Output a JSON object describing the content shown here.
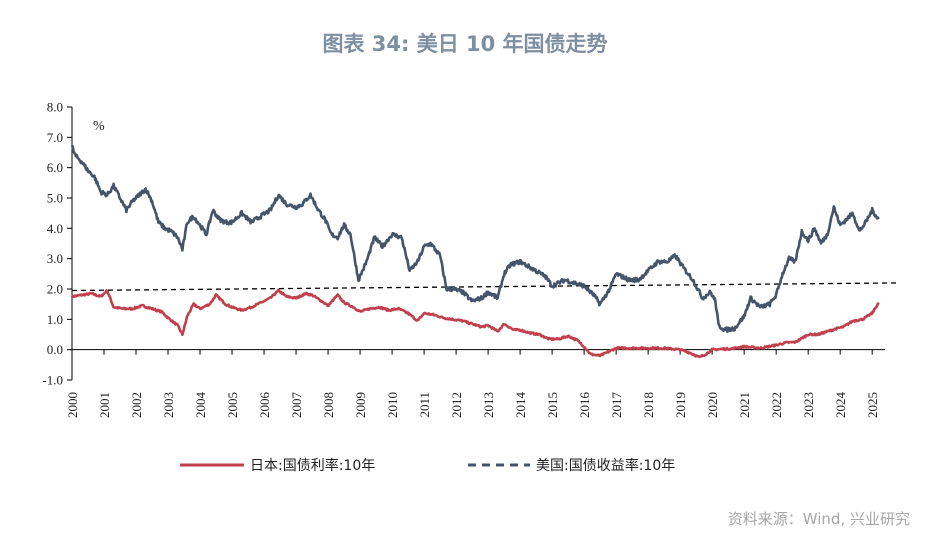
{
  "title": "图表 34: 美日 10 年国债走势",
  "source": "资料来源：Wind, 兴业研究",
  "chart_data": {
    "type": "line",
    "unit_label": "%",
    "ylim": [
      -1.0,
      8.0
    ],
    "yticks": [
      "8.0",
      "7.0",
      "6.0",
      "5.0",
      "4.0",
      "3.0",
      "2.0",
      "1.0",
      "0.0",
      "-1.0"
    ],
    "ytick_values": [
      8,
      7,
      6,
      5,
      4,
      3,
      2,
      1,
      0,
      -1
    ],
    "xlim": [
      2000,
      2025.4
    ],
    "xticks": [
      "2000",
      "2001",
      "2002",
      "2003",
      "2004",
      "2005",
      "2006",
      "2007",
      "2008",
      "2009",
      "2010",
      "2011",
      "2012",
      "2013",
      "2014",
      "2015",
      "2016",
      "2017",
      "2018",
      "2019",
      "2020",
      "2021",
      "2022",
      "2023",
      "2024",
      "2025"
    ],
    "xtick_values": [
      2000,
      2001,
      2002,
      2003,
      2004,
      2005,
      2006,
      2007,
      2008,
      2009,
      2010,
      2011,
      2012,
      2013,
      2014,
      2015,
      2016,
      2017,
      2018,
      2019,
      2020,
      2021,
      2022,
      2023,
      2024,
      2025
    ],
    "reference_line": {
      "style": "dashed",
      "from": [
        2000,
        1.95
      ],
      "to": [
        2025.8,
        2.2
      ]
    },
    "series": [
      {
        "name": "日本:国债利率:10年",
        "color": "#c0404d",
        "style": "solid",
        "x": [
          2000.0,
          2000.3,
          2000.6,
          2000.9,
          2001.1,
          2001.3,
          2001.6,
          2001.9,
          2002.2,
          2002.5,
          2002.8,
          2003.0,
          2003.3,
          2003.45,
          2003.6,
          2003.8,
          2004.0,
          2004.3,
          2004.5,
          2004.8,
          2005.0,
          2005.3,
          2005.6,
          2005.9,
          2006.2,
          2006.45,
          2006.7,
          2007.0,
          2007.3,
          2007.5,
          2007.8,
          2008.0,
          2008.3,
          2008.5,
          2008.8,
          2009.0,
          2009.3,
          2009.6,
          2009.9,
          2010.2,
          2010.5,
          2010.8,
          2011.0,
          2011.3,
          2011.6,
          2011.9,
          2012.2,
          2012.5,
          2012.8,
          2013.0,
          2013.3,
          2013.5,
          2013.8,
          2014.0,
          2014.3,
          2014.6,
          2014.9,
          2015.2,
          2015.5,
          2015.8,
          2016.0,
          2016.2,
          2016.5,
          2016.8,
          2017.0,
          2017.5,
          2018.0,
          2018.5,
          2019.0,
          2019.3,
          2019.6,
          2019.8,
          2020.0,
          2020.3,
          2020.6,
          2021.0,
          2021.5,
          2022.0,
          2022.3,
          2022.6,
          2023.0,
          2023.3,
          2023.6,
          2023.9,
          2024.1,
          2024.4,
          2024.7,
          2025.0,
          2025.2
        ],
        "values": [
          1.75,
          1.8,
          1.85,
          1.75,
          1.95,
          1.4,
          1.35,
          1.35,
          1.45,
          1.35,
          1.25,
          1.05,
          0.8,
          0.5,
          1.1,
          1.5,
          1.35,
          1.5,
          1.8,
          1.5,
          1.4,
          1.3,
          1.4,
          1.55,
          1.7,
          1.95,
          1.75,
          1.7,
          1.85,
          1.8,
          1.6,
          1.45,
          1.8,
          1.55,
          1.4,
          1.25,
          1.35,
          1.4,
          1.3,
          1.35,
          1.2,
          0.95,
          1.2,
          1.15,
          1.05,
          1.0,
          0.95,
          0.85,
          0.75,
          0.8,
          0.6,
          0.85,
          0.65,
          0.65,
          0.55,
          0.5,
          0.35,
          0.35,
          0.45,
          0.3,
          0.1,
          -0.15,
          -0.2,
          -0.05,
          0.05,
          0.05,
          0.05,
          0.05,
          0.0,
          -0.1,
          -0.25,
          -0.15,
          0.0,
          0.02,
          0.03,
          0.1,
          0.05,
          0.15,
          0.23,
          0.25,
          0.5,
          0.5,
          0.6,
          0.7,
          0.75,
          0.95,
          1.0,
          1.2,
          1.55
        ]
      },
      {
        "name": "美国:国债收益率:10年",
        "color": "#44546a",
        "style": "dashed",
        "x": [
          2000.0,
          2000.1,
          2000.3,
          2000.5,
          2000.7,
          2000.9,
          2001.1,
          2001.3,
          2001.5,
          2001.7,
          2001.9,
          2002.1,
          2002.3,
          2002.5,
          2002.7,
          2002.9,
          2003.1,
          2003.3,
          2003.45,
          2003.6,
          2003.8,
          2004.0,
          2004.2,
          2004.4,
          2004.6,
          2004.8,
          2005.0,
          2005.3,
          2005.6,
          2005.9,
          2006.2,
          2006.45,
          2006.7,
          2007.0,
          2007.2,
          2007.45,
          2007.7,
          2007.9,
          2008.1,
          2008.3,
          2008.5,
          2008.7,
          2008.95,
          2009.2,
          2009.45,
          2009.7,
          2010.0,
          2010.3,
          2010.55,
          2010.8,
          2011.0,
          2011.2,
          2011.5,
          2011.7,
          2011.9,
          2012.2,
          2012.5,
          2012.8,
          2013.0,
          2013.3,
          2013.5,
          2013.7,
          2014.0,
          2014.5,
          2014.8,
          2015.0,
          2015.4,
          2015.7,
          2016.0,
          2016.3,
          2016.5,
          2016.8,
          2017.0,
          2017.4,
          2017.7,
          2018.0,
          2018.3,
          2018.6,
          2018.85,
          2019.1,
          2019.4,
          2019.7,
          2019.95,
          2020.1,
          2020.2,
          2020.4,
          2020.7,
          2021.0,
          2021.2,
          2021.5,
          2021.8,
          2022.0,
          2022.2,
          2022.4,
          2022.6,
          2022.8,
          2023.0,
          2023.2,
          2023.4,
          2023.6,
          2023.8,
          2024.0,
          2024.2,
          2024.4,
          2024.6,
          2024.8,
          2025.0,
          2025.2
        ],
        "values": [
          6.7,
          6.4,
          6.2,
          5.9,
          5.7,
          5.2,
          5.1,
          5.4,
          5.0,
          4.6,
          4.9,
          5.1,
          5.3,
          4.9,
          4.2,
          4.0,
          3.9,
          3.7,
          3.3,
          4.2,
          4.4,
          4.1,
          3.8,
          4.6,
          4.3,
          4.2,
          4.2,
          4.5,
          4.2,
          4.4,
          4.6,
          5.1,
          4.8,
          4.7,
          4.8,
          5.1,
          4.6,
          4.3,
          3.8,
          3.7,
          4.1,
          3.8,
          2.3,
          2.9,
          3.7,
          3.4,
          3.8,
          3.7,
          2.6,
          2.9,
          3.4,
          3.5,
          3.1,
          2.0,
          2.0,
          1.9,
          1.6,
          1.7,
          1.9,
          1.7,
          2.5,
          2.8,
          2.9,
          2.6,
          2.4,
          2.1,
          2.3,
          2.2,
          2.1,
          1.8,
          1.5,
          2.0,
          2.5,
          2.3,
          2.3,
          2.6,
          2.9,
          2.9,
          3.1,
          2.7,
          2.3,
          1.7,
          1.9,
          1.6,
          0.8,
          0.65,
          0.7,
          1.1,
          1.7,
          1.4,
          1.5,
          1.8,
          2.5,
          3.0,
          2.9,
          3.9,
          3.6,
          4.0,
          3.5,
          3.8,
          4.7,
          4.1,
          4.3,
          4.5,
          3.9,
          4.2,
          4.6,
          4.3
        ]
      }
    ]
  }
}
